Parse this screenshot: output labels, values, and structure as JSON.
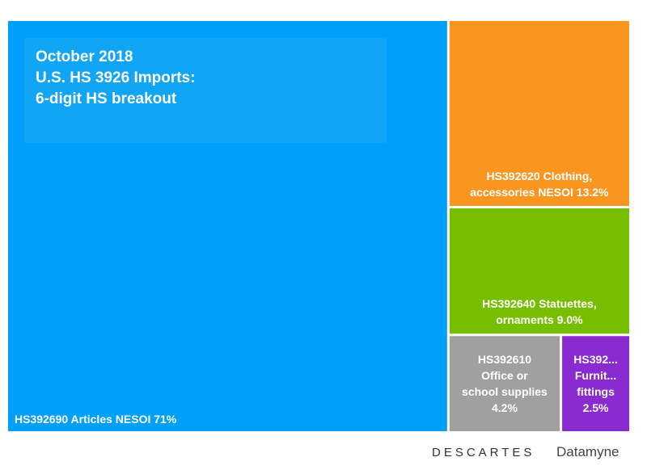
{
  "chart_data": {
    "type": "treemap",
    "title": "October 2018\nU.S. HS 3926 Imports:\n6-digit HS breakout",
    "title_lines": [
      "October 2018",
      "U.S. HS 3926 Imports:",
      "6-digit HS breakout"
    ],
    "unit": "%",
    "items": [
      {
        "code": "HS392690",
        "label": "HS392690 Articles NESOI 71%",
        "label_lines": [
          "HS392690 Articles NESOI 71%"
        ],
        "value": 71,
        "color": "#00A0FA"
      },
      {
        "code": "HS392620",
        "label": "HS392620 Clothing, accessories NESOI 13.2%",
        "label_lines": [
          "HS392620 Clothing,",
          "accessories NESOI 13.2%"
        ],
        "value": 13.2,
        "color": "#FA9620"
      },
      {
        "code": "HS392640",
        "label": "HS392640 Statuettes, ornaments 9.0%",
        "label_lines": [
          "HS392640 Statuettes,",
          "ornaments 9.0%"
        ],
        "value": 9.0,
        "color": "#78BE00"
      },
      {
        "code": "HS392610",
        "label": "HS392610 Office or school supplies 4.2%",
        "label_lines": [
          "HS392610",
          "Office or",
          "school supplies",
          "4.2%"
        ],
        "value": 4.2,
        "color": "#A0A0A0"
      },
      {
        "code": "HS392630",
        "label": "HS392... Furnit... fittings 2.5%",
        "label_lines": [
          "HS392...",
          "Furnit...",
          "fittings",
          "2.5%"
        ],
        "value": 2.5,
        "color": "#8A2BD2"
      }
    ]
  },
  "branding": {
    "left": "DESCARTES",
    "right": "Datamyne"
  }
}
